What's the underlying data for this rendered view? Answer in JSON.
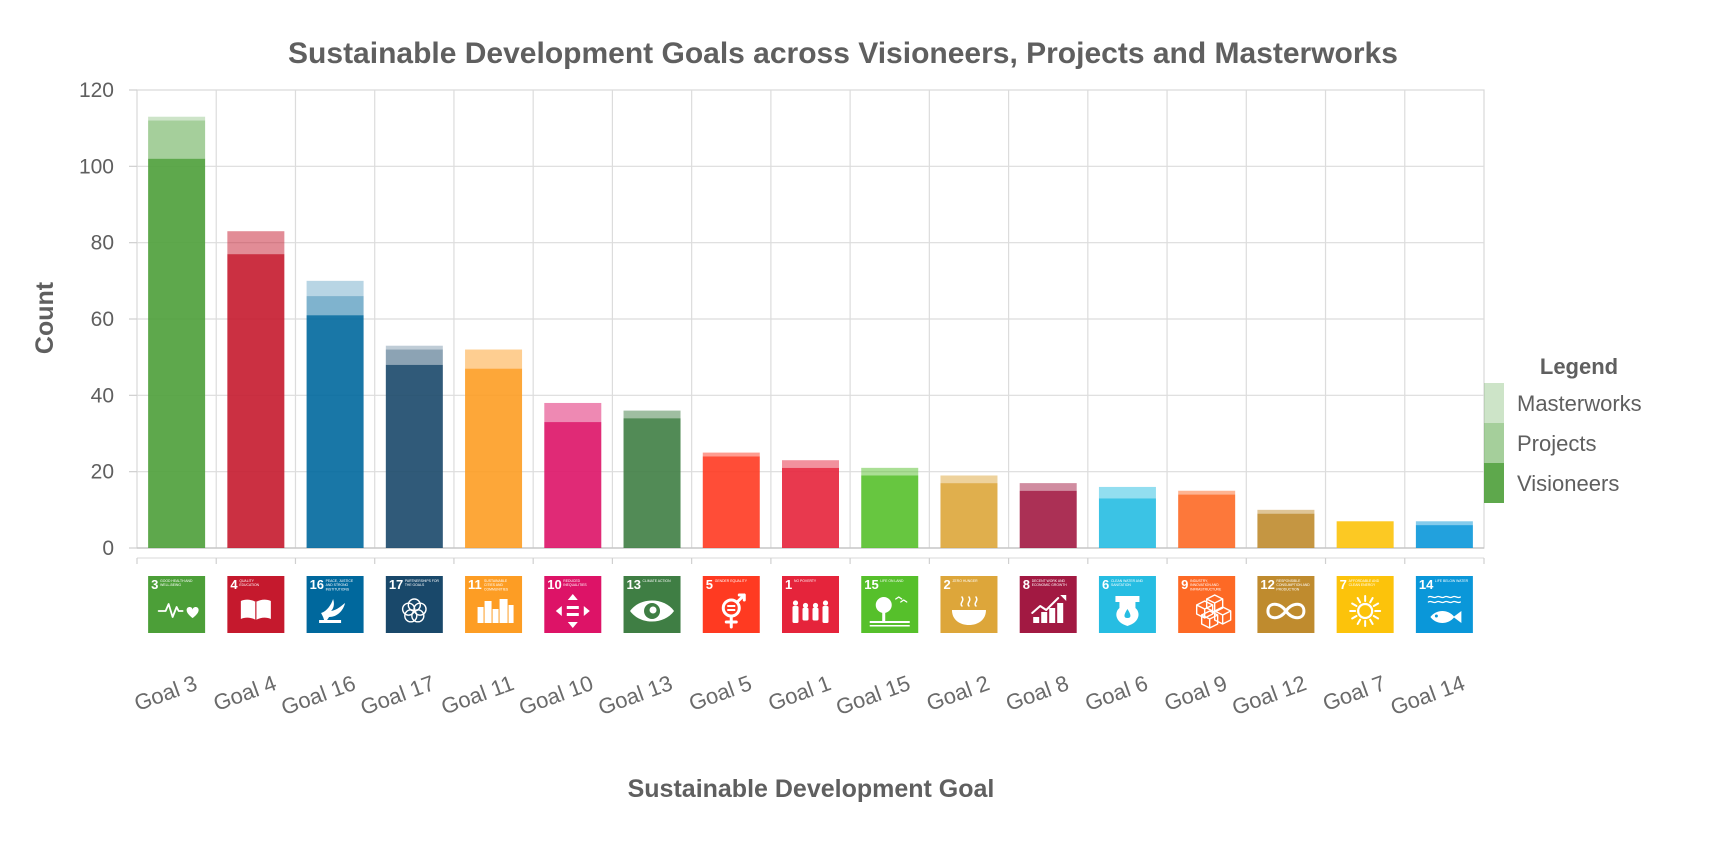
{
  "chart_data": {
    "type": "bar",
    "stacked": true,
    "title": "Sustainable Development Goals across Visioneers, Projects and Masterworks",
    "xlabel": "Sustainable Development Goal",
    "ylabel": "Count",
    "ylim": [
      0,
      120
    ],
    "yticks": [
      0,
      20,
      40,
      60,
      80,
      100,
      120
    ],
    "grid": true,
    "legend": {
      "title": "Legend",
      "placement": "right"
    },
    "categories": [
      "Goal 3",
      "Goal 4",
      "Goal 16",
      "Goal 17",
      "Goal 11",
      "Goal 10",
      "Goal 13",
      "Goal 5",
      "Goal 1",
      "Goal 15",
      "Goal 2",
      "Goal 8",
      "Goal 6",
      "Goal 9",
      "Goal 12",
      "Goal 7",
      "Goal 14"
    ],
    "goal_colors": [
      "#4c9f38",
      "#c5192d",
      "#00689d",
      "#19486a",
      "#fd9d24",
      "#dd1367",
      "#3f7e44",
      "#ff3a21",
      "#e5243b",
      "#56c02b",
      "#dda63a",
      "#a21942",
      "#26bde2",
      "#fd6925",
      "#bf8b2e",
      "#fcc30b",
      "#0a97d9"
    ],
    "series": [
      {
        "name": "Visioneers",
        "opacity": 0.9,
        "values": [
          102,
          77,
          61,
          48,
          47,
          33,
          34,
          24,
          21,
          19,
          17,
          15,
          13,
          14,
          9,
          7,
          6
        ]
      },
      {
        "name": "Projects",
        "opacity": 0.5,
        "values": [
          10,
          6,
          5,
          4,
          5,
          5,
          2,
          1,
          2,
          2,
          2,
          2,
          3,
          1,
          1,
          0,
          1
        ]
      },
      {
        "name": "Masterworks",
        "opacity": 0.28,
        "values": [
          1,
          0,
          4,
          1,
          0,
          0,
          0,
          0,
          0,
          0,
          0,
          0,
          0,
          0,
          0,
          0,
          0
        ]
      }
    ],
    "legend_swatch_color": "#4c9f38",
    "icons": [
      {
        "number": "3",
        "caption": "GOOD HEALTH AND WELL-BEING",
        "symbol": "heartbeat-icon"
      },
      {
        "number": "4",
        "caption": "QUALITY EDUCATION",
        "symbol": "book-icon"
      },
      {
        "number": "16",
        "caption": "PEACE, JUSTICE AND STRONG INSTITUTIONS",
        "symbol": "dove-icon"
      },
      {
        "number": "17",
        "caption": "PARTNERSHIPS FOR THE GOALS",
        "symbol": "rings-icon"
      },
      {
        "number": "11",
        "caption": "SUSTAINABLE CITIES AND COMMUNITIES",
        "symbol": "buildings-icon"
      },
      {
        "number": "10",
        "caption": "REDUCED INEQUALITIES",
        "symbol": "arrows-icon"
      },
      {
        "number": "13",
        "caption": "CLIMATE ACTION",
        "symbol": "eye-globe-icon"
      },
      {
        "number": "5",
        "caption": "GENDER EQUALITY",
        "symbol": "gender-icon"
      },
      {
        "number": "1",
        "caption": "NO POVERTY",
        "symbol": "family-icon"
      },
      {
        "number": "15",
        "caption": "LIFE ON LAND",
        "symbol": "tree-icon"
      },
      {
        "number": "2",
        "caption": "ZERO HUNGER",
        "symbol": "bowl-icon"
      },
      {
        "number": "8",
        "caption": "DECENT WORK AND ECONOMIC GROWTH",
        "symbol": "growth-chart-icon"
      },
      {
        "number": "6",
        "caption": "CLEAN WATER AND SANITATION",
        "symbol": "water-drop-icon"
      },
      {
        "number": "9",
        "caption": "INDUSTRY, INNOVATION AND INFRASTRUCTURE",
        "symbol": "cubes-icon"
      },
      {
        "number": "12",
        "caption": "RESPONSIBLE CONSUMPTION AND PRODUCTION",
        "symbol": "infinity-icon"
      },
      {
        "number": "7",
        "caption": "AFFORDABLE AND CLEAN ENERGY",
        "symbol": "sun-icon"
      },
      {
        "number": "14",
        "caption": "LIFE BELOW WATER",
        "symbol": "fish-icon"
      }
    ]
  }
}
